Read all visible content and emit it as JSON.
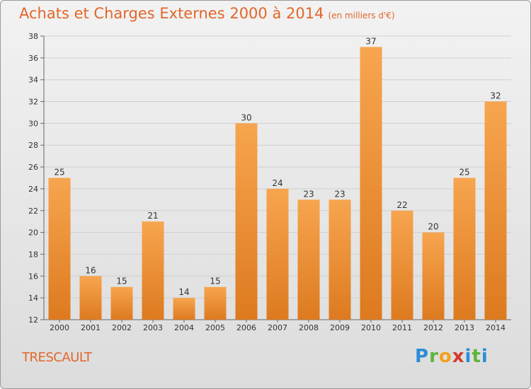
{
  "header": {
    "title": "Achats et Charges Externes 2000 à 2014",
    "subtitle": "(en milliers d'€)"
  },
  "commune": "TRESCAULT",
  "logo": {
    "text": "Proxiti"
  },
  "colors": {
    "bar_top": "#f7a54f",
    "bar_bottom": "#dd7a1f",
    "title": "#e2662a",
    "grid": "#cfcfcf"
  },
  "chart_data": {
    "type": "bar",
    "categories": [
      "2000",
      "2001",
      "2002",
      "2003",
      "2004",
      "2005",
      "2006",
      "2007",
      "2008",
      "2009",
      "2010",
      "2011",
      "2012",
      "2013",
      "2014"
    ],
    "values": [
      25,
      16,
      15,
      21,
      14,
      15,
      30,
      24,
      23,
      23,
      37,
      22,
      20,
      25,
      32
    ],
    "title": "Achats et Charges Externes 2000 à 2014",
    "subtitle": "(en milliers d'€)",
    "ylim": [
      12,
      38
    ],
    "yticks": [
      12,
      14,
      16,
      18,
      20,
      22,
      24,
      26,
      28,
      30,
      32,
      34,
      36,
      38
    ],
    "grid": true,
    "data_labels": true
  }
}
